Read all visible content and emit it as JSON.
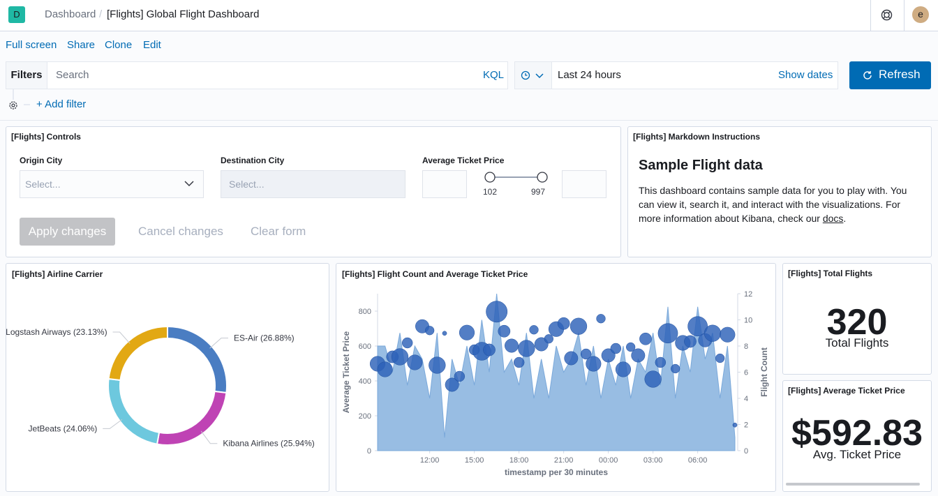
{
  "header": {
    "logo": "D",
    "breadcrumbs": [
      "Dashboard",
      "[Flights] Global Flight Dashboard"
    ],
    "avatar": "e"
  },
  "menu": [
    "Full screen",
    "Share",
    "Clone",
    "Edit"
  ],
  "query_bar": {
    "filters": "Filters",
    "search_placeholder": "Search",
    "language": "KQL",
    "time_range": "Last 24 hours",
    "show_dates": "Show dates",
    "refresh": "Refresh",
    "add_filter": "+ Add filter"
  },
  "controls_panel": {
    "title": "[Flights] Controls",
    "fields": [
      {
        "label": "Origin City",
        "placeholder": "Select..."
      },
      {
        "label": "Destination City",
        "placeholder": "Select..."
      }
    ],
    "price": {
      "label": "Average Ticket Price",
      "min": 102,
      "max": 997
    },
    "buttons": [
      "Apply changes",
      "Cancel changes",
      "Clear form"
    ]
  },
  "markdown_panel": {
    "title": "[Flights] Markdown Instructions",
    "heading": "Sample Flight data",
    "text": "This dashboard contains sample data for you to play with. You can view it, search it, and interact with the visualizations. For more information about Kibana, check our ",
    "link": "docs",
    "text_end": "."
  },
  "chart_data": [
    {
      "type": "pie",
      "title": "[Flights] Airline Carrier",
      "donut": true,
      "categories": [
        "ES-Air",
        "Kibana Airlines",
        "JetBeats",
        "Logstash Airways"
      ],
      "values": [
        26.88,
        25.94,
        24.06,
        23.13
      ],
      "value_labels": [
        "ES-Air (26.88%)",
        "Kibana Airlines (25.94%)",
        "JetBeats (24.06%)",
        "Logstash Airways (23.13%)"
      ],
      "colors": [
        "#4a7dc2",
        "#bf43b4",
        "#6dc8de",
        "#e2a813"
      ]
    },
    {
      "type": "combo",
      "title": "[Flights] Flight Count and Average Ticket Price",
      "x": [
        "08:30",
        "09:00",
        "09:30",
        "10:00",
        "10:30",
        "11:00",
        "11:30",
        "12:00",
        "12:30",
        "13:00",
        "13:30",
        "14:00",
        "14:30",
        "15:00",
        "15:30",
        "16:00",
        "16:30",
        "17:00",
        "17:30",
        "18:00",
        "18:30",
        "19:00",
        "19:30",
        "20:00",
        "20:30",
        "21:00",
        "21:30",
        "22:00",
        "22:30",
        "23:00",
        "23:30",
        "00:00",
        "00:30",
        "01:00",
        "01:30",
        "02:00",
        "02:30",
        "03:00",
        "03:30",
        "04:00",
        "04:30",
        "05:00",
        "05:30",
        "06:00",
        "06:30",
        "07:00",
        "07:30",
        "08:00",
        "08:30"
      ],
      "xticks": [
        "12:00",
        "15:00",
        "18:00",
        "21:00",
        "00:00",
        "03:00",
        "06:00"
      ],
      "xlabel": "timestamp per 30 minutes",
      "ylabel": "Average Ticket Price",
      "y2label": "Flight Count",
      "ylim": [
        0,
        900
      ],
      "yticks": [
        0,
        200,
        400,
        600,
        800
      ],
      "y2lim": [
        0,
        12
      ],
      "y2ticks": [
        0,
        2,
        4,
        6,
        8,
        10,
        12
      ],
      "series": [
        {
          "type": "area",
          "axis": "y2",
          "color": "#98bde3",
          "values": [
            8,
            8,
            6,
            9,
            5,
            8,
            7,
            4,
            9,
            1,
            7,
            5,
            8,
            5,
            10,
            6,
            12,
            6,
            7,
            5,
            9,
            4,
            7,
            4,
            8,
            6,
            7,
            9,
            5,
            8,
            4,
            7,
            5,
            8,
            4,
            7,
            6,
            9,
            5,
            11,
            4,
            8,
            6,
            11,
            7,
            9,
            4,
            8,
            1
          ]
        },
        {
          "type": "bubble",
          "color": "#2d62b8",
          "values": [
            498,
            466,
            538,
            538,
            618,
            506,
            713,
            689,
            490,
            673,
            378,
            426,
            677,
            578,
            570,
            578,
            797,
            685,
            602,
            506,
            586,
            693,
            610,
            641,
            697,
            729,
            530,
            713,
            554,
            498,
            757,
            546,
            586,
            466,
            594,
            546,
            641,
            410,
            506,
            673,
            470,
            618,
            626,
            713,
            633,
            673,
            530,
            665,
            147
          ]
        }
      ]
    }
  ],
  "metrics": [
    {
      "title": "[Flights] Total Flights",
      "value": "320",
      "label": "Total Flights"
    },
    {
      "title": "[Flights] Average Ticket Price",
      "value": "$592.83",
      "label": "Avg. Ticket Price"
    }
  ]
}
